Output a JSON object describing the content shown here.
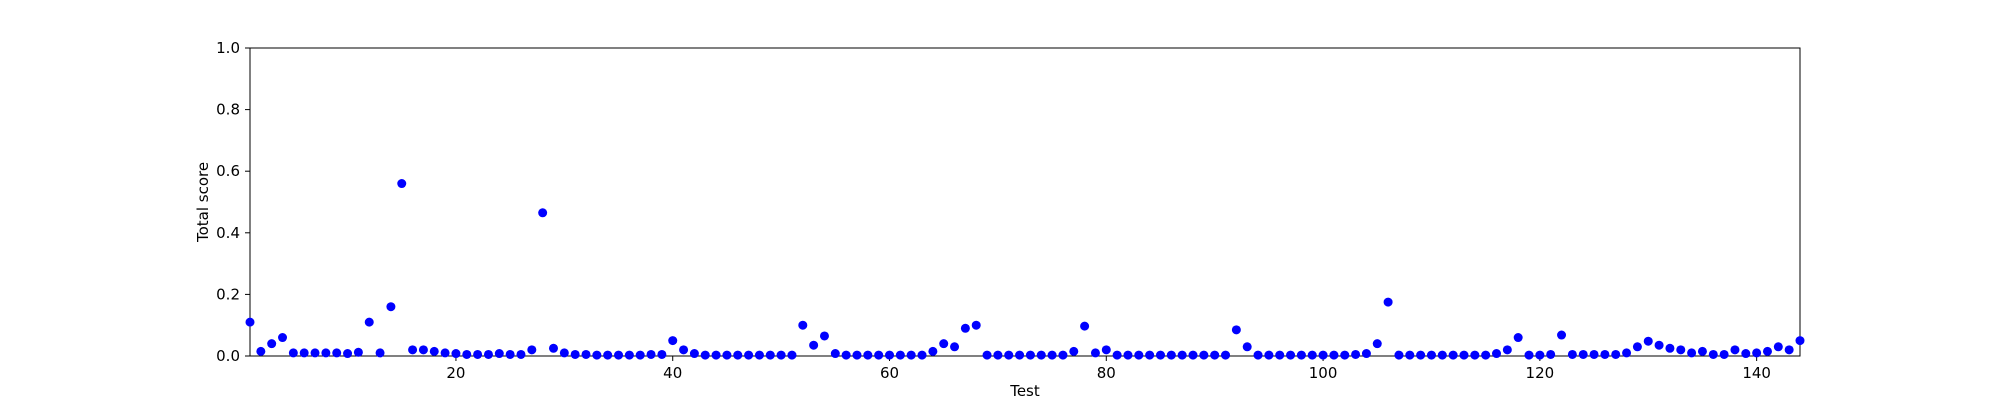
{
  "chart_data": {
    "type": "scatter",
    "title": "",
    "xlabel": "Test",
    "ylabel": "Total score",
    "xlim": [
      1,
      144
    ],
    "ylim": [
      0,
      1
    ],
    "xticks": [
      20,
      40,
      60,
      80,
      100,
      120,
      140
    ],
    "yticks": [
      "0.0",
      "0.2",
      "0.4",
      "0.6",
      "0.8",
      "1.0"
    ],
    "grid": false,
    "legend": "none",
    "marker_color": "#0000ff",
    "series": [
      {
        "x": [
          1,
          2,
          3,
          4,
          5,
          6,
          7,
          8,
          9,
          10,
          11,
          12,
          13,
          14,
          15,
          16,
          17,
          18,
          19,
          20,
          21,
          22,
          23,
          24,
          25,
          26,
          27,
          28,
          29,
          30,
          31,
          32,
          33,
          34,
          35,
          36,
          37,
          38,
          39,
          40,
          41,
          42,
          43,
          44,
          45,
          46,
          47,
          48,
          49,
          50,
          51,
          52,
          53,
          54,
          55,
          56,
          57,
          58,
          59,
          60,
          61,
          62,
          63,
          64,
          65,
          66,
          67,
          68,
          69,
          70,
          71,
          72,
          73,
          74,
          75,
          76,
          77,
          78,
          79,
          80,
          81,
          82,
          83,
          84,
          85,
          86,
          87,
          88,
          89,
          90,
          91,
          92,
          93,
          94,
          95,
          96,
          97,
          98,
          99,
          100,
          101,
          102,
          103,
          104,
          105,
          106,
          107,
          108,
          109,
          110,
          111,
          112,
          113,
          114,
          115,
          116,
          117,
          118,
          119,
          120,
          121,
          122,
          123,
          124,
          125,
          126,
          127,
          128,
          129,
          130,
          131,
          132,
          133,
          134,
          135,
          136,
          137,
          138,
          139,
          140,
          141,
          142,
          143,
          144
        ],
        "y": [
          0.11,
          0.015,
          0.04,
          0.06,
          0.01,
          0.01,
          0.01,
          0.01,
          0.01,
          0.008,
          0.012,
          0.11,
          0.01,
          0.16,
          0.56,
          0.02,
          0.02,
          0.015,
          0.01,
          0.008,
          0.005,
          0.005,
          0.005,
          0.008,
          0.005,
          0.005,
          0.02,
          0.465,
          0.025,
          0.01,
          0.005,
          0.005,
          0.003,
          0.003,
          0.003,
          0.003,
          0.003,
          0.005,
          0.005,
          0.05,
          0.02,
          0.008,
          0.003,
          0.003,
          0.003,
          0.003,
          0.003,
          0.003,
          0.003,
          0.003,
          0.003,
          0.1,
          0.035,
          0.065,
          0.008,
          0.003,
          0.003,
          0.003,
          0.003,
          0.003,
          0.003,
          0.003,
          0.003,
          0.015,
          0.04,
          0.03,
          0.09,
          0.1,
          0.003,
          0.003,
          0.003,
          0.003,
          0.003,
          0.003,
          0.003,
          0.003,
          0.015,
          0.097,
          0.01,
          0.02,
          0.003,
          0.003,
          0.003,
          0.003,
          0.003,
          0.003,
          0.003,
          0.003,
          0.003,
          0.003,
          0.003,
          0.085,
          0.03,
          0.003,
          0.003,
          0.003,
          0.003,
          0.003,
          0.003,
          0.003,
          0.003,
          0.003,
          0.005,
          0.008,
          0.04,
          0.175,
          0.003,
          0.003,
          0.003,
          0.003,
          0.003,
          0.003,
          0.003,
          0.003,
          0.003,
          0.008,
          0.02,
          0.06,
          0.003,
          0.003,
          0.005,
          0.068,
          0.005,
          0.005,
          0.005,
          0.005,
          0.005,
          0.01,
          0.03,
          0.048,
          0.035,
          0.025,
          0.02,
          0.01,
          0.015,
          0.005,
          0.005,
          0.02,
          0.008,
          0.01,
          0.015,
          0.03,
          0.02,
          0.05
        ]
      }
    ]
  }
}
